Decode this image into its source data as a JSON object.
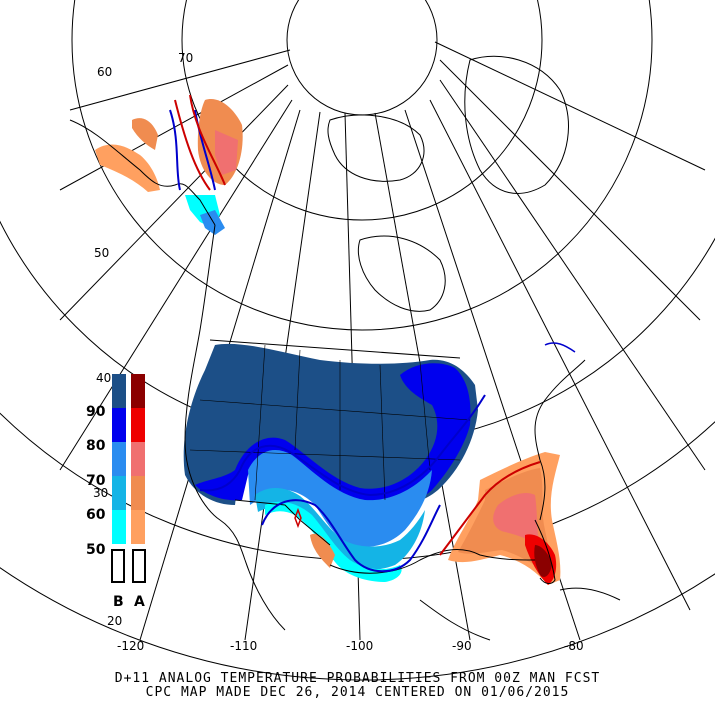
{
  "map": {
    "caption_line_1": "D+11 ANALOG TEMPERATURE PROBABILITIES FROM 00Z MAN FCST",
    "caption_line_2": "CPC MAP MADE DEC 26, 2014 CENTERED ON 01/06/2015",
    "lat_labels": [
      "60",
      "70",
      "50",
      "40",
      "30",
      "20"
    ],
    "lon_labels": [
      "-120",
      "-110",
      "-100",
      "-90",
      "-80"
    ]
  },
  "legend": {
    "levels": [
      "90",
      "80",
      "70",
      "60",
      "50"
    ],
    "below_label": "B",
    "above_label": "A",
    "below_colors": [
      "#1c4f87",
      "#0000ee",
      "#2a8cf0",
      "#14b4e6",
      "#00ffff"
    ],
    "above_colors": [
      "#8b0000",
      "#ee0000",
      "#f07070",
      "#f08c50",
      "#ffa060"
    ]
  },
  "colors": {
    "below_90": "#1c4f87",
    "below_80": "#0000ee",
    "below_70": "#2a8cf0",
    "below_60": "#14b4e6",
    "below_50": "#00ffff",
    "above_50": "#ffa060",
    "above_60": "#f08c50",
    "above_70": "#f07070",
    "above_80": "#ee0000",
    "above_90": "#8b0000"
  }
}
